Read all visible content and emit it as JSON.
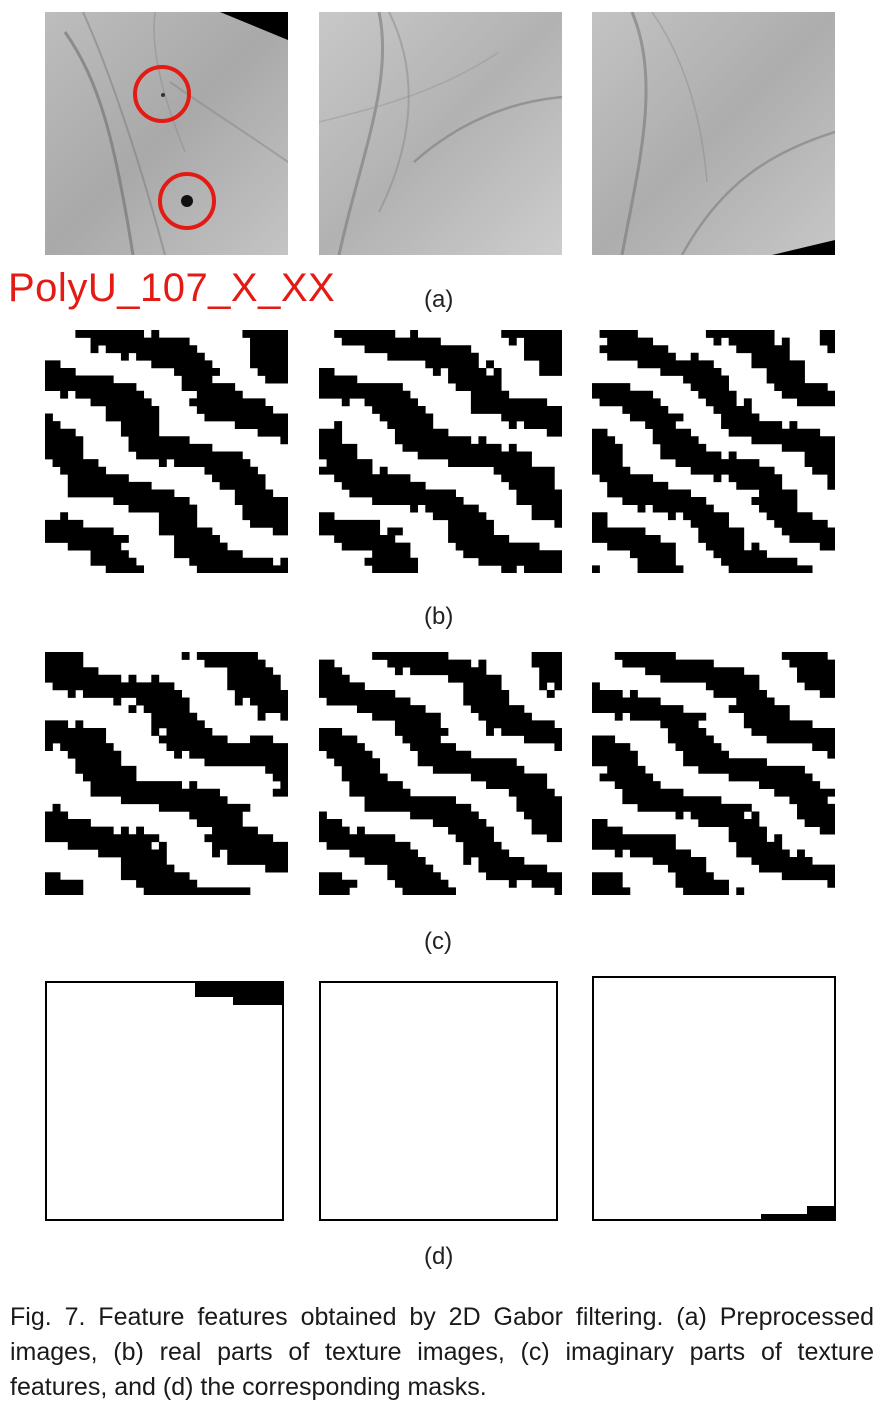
{
  "figure": {
    "watermark_label": "PolyU_107_X_XX",
    "panels": [
      {
        "id": "a",
        "label": "(a)"
      },
      {
        "id": "b",
        "label": "(b)"
      },
      {
        "id": "c",
        "label": "(c)"
      },
      {
        "id": "d",
        "label": "(d)"
      }
    ],
    "caption": "Fig. 7. Feature features obtained by 2D Gabor filtering. (a) Preprocessed images, (b) real parts of texture images, (c) imaginary parts of texture features, and (d) the corresponding masks.",
    "highlight_color": "#e31b14"
  }
}
